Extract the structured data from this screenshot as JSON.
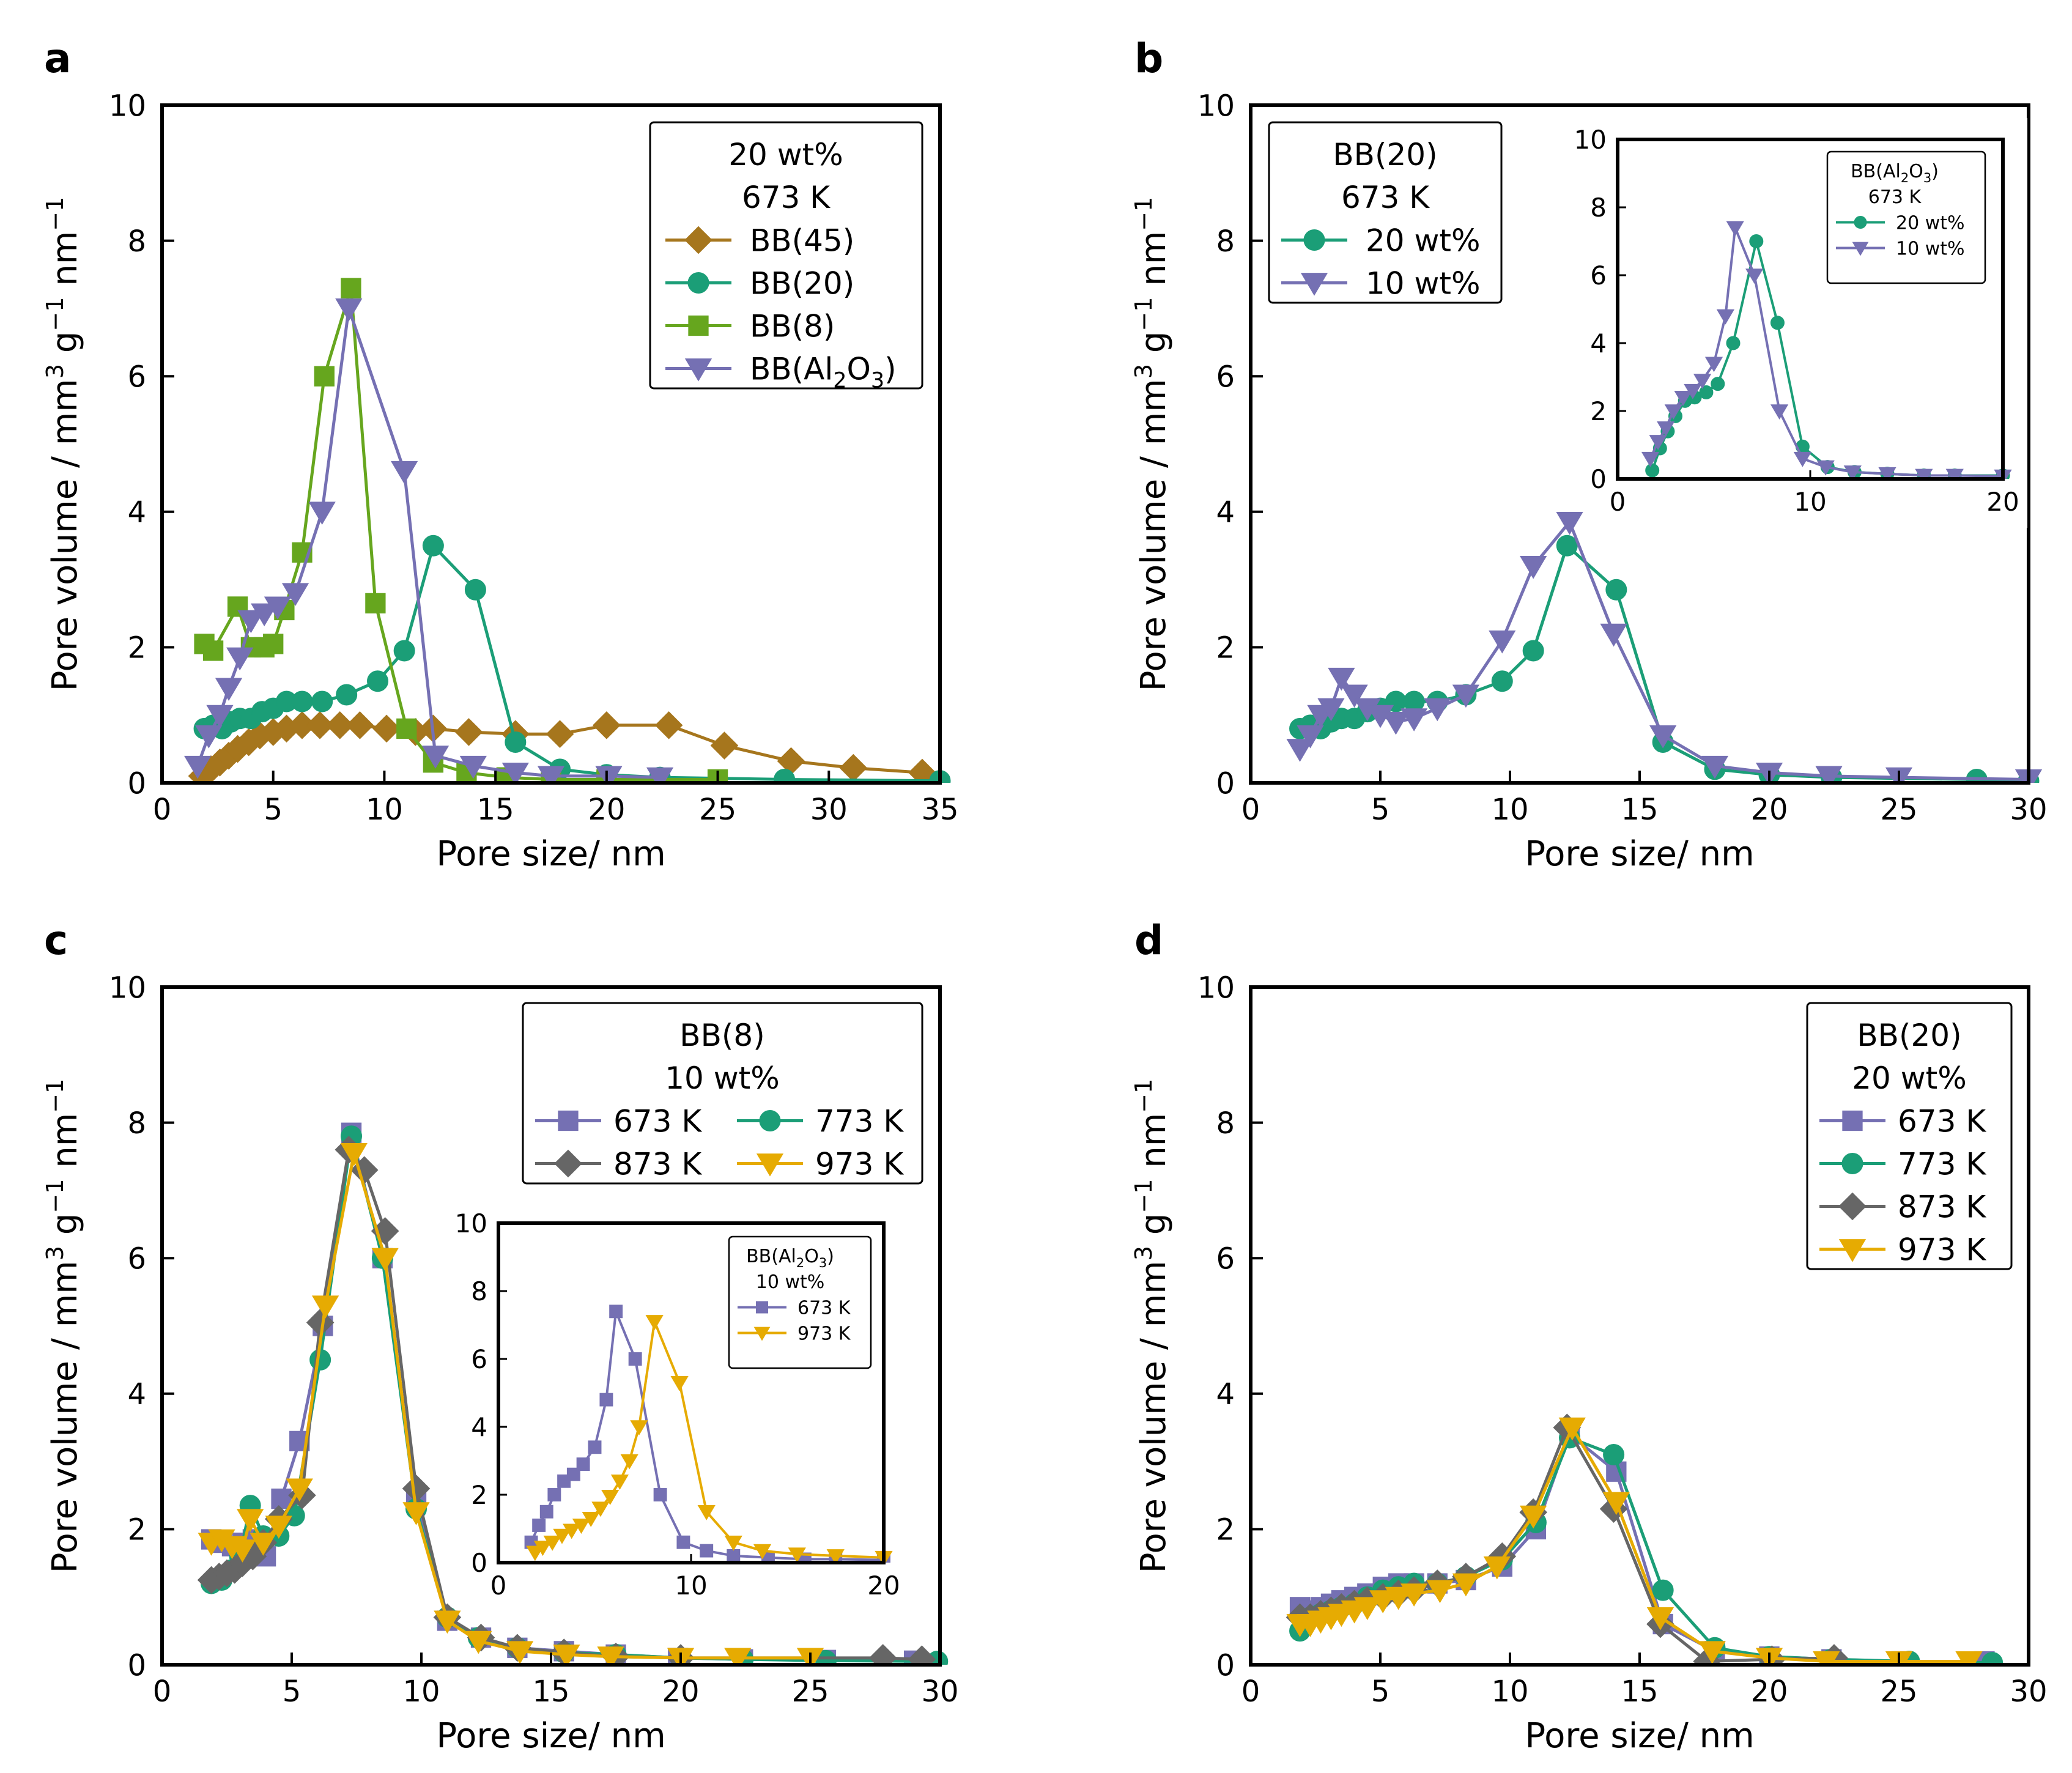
{
  "chart_data": [
    {
      "id": "a",
      "type": "line",
      "panel_label": "a",
      "xlabel": "Pore size/ nm",
      "ylabel": "Pore volume / mm³ g⁻¹ nm⁻¹",
      "xlim": [
        0,
        35
      ],
      "ylim": [
        0,
        10
      ],
      "xticks": [
        0,
        5,
        10,
        15,
        20,
        25,
        30,
        35
      ],
      "yticks": [
        0,
        2,
        4,
        6,
        8,
        10
      ],
      "legend": {
        "position": "top-right",
        "title": [
          "20 wt%",
          "673 K"
        ],
        "columns": 1
      },
      "series": [
        {
          "name": "BB(45)",
          "color": "#a6761d",
          "marker": "diamond",
          "x": [
            1.8,
            2.2,
            2.6,
            3.0,
            3.4,
            3.9,
            4.4,
            5.0,
            5.6,
            6.3,
            7.1,
            8.0,
            8.9,
            10.1,
            11.4,
            12.2,
            13.8,
            15.9,
            17.9,
            20.0,
            22.8,
            25.3,
            28.3,
            31.1,
            34.2
          ],
          "y": [
            0.1,
            0.2,
            0.3,
            0.4,
            0.5,
            0.6,
            0.7,
            0.75,
            0.8,
            0.85,
            0.85,
            0.85,
            0.85,
            0.8,
            0.75,
            0.8,
            0.75,
            0.72,
            0.72,
            0.85,
            0.85,
            0.55,
            0.32,
            0.22,
            0.15
          ]
        },
        {
          "name": "BB(20)",
          "color": "#1b9e77",
          "marker": "circle",
          "x": [
            1.9,
            2.3,
            2.7,
            3.1,
            3.5,
            4.0,
            4.5,
            5.0,
            5.6,
            6.3,
            7.2,
            8.3,
            9.7,
            10.9,
            12.2,
            14.1,
            15.9,
            17.9,
            20.0,
            22.4,
            28.0,
            35.0
          ],
          "y": [
            0.8,
            0.85,
            0.8,
            0.9,
            0.95,
            0.95,
            1.05,
            1.1,
            1.2,
            1.2,
            1.2,
            1.3,
            1.5,
            1.95,
            3.5,
            2.85,
            0.6,
            0.2,
            0.12,
            0.08,
            0.05,
            0.03
          ]
        },
        {
          "name": "BB(8)",
          "color": "#66a61e",
          "marker": "square",
          "x": [
            1.9,
            2.3,
            3.4,
            4.0,
            4.6,
            5.0,
            5.5,
            6.3,
            7.3,
            8.5,
            9.6,
            11.0,
            12.2,
            13.7,
            15.5,
            17.5,
            20.0,
            25.0
          ],
          "y": [
            2.05,
            1.95,
            2.6,
            2.0,
            2.0,
            2.05,
            2.55,
            3.4,
            6.0,
            7.3,
            2.65,
            0.8,
            0.3,
            0.15,
            0.08,
            0.05,
            0.05,
            0.05
          ]
        },
        {
          "name": "BB(Al₂O₃)",
          "color": "#7570b3",
          "marker": "triangle-down",
          "x": [
            1.6,
            2.1,
            2.6,
            3.0,
            3.5,
            4.0,
            4.6,
            5.2,
            6.0,
            7.2,
            8.4,
            10.9,
            12.3,
            14.0,
            15.9,
            17.5,
            20.1,
            22.4
          ],
          "y": [
            0.25,
            0.7,
            1.0,
            1.4,
            1.85,
            2.4,
            2.5,
            2.6,
            2.8,
            4.0,
            7.0,
            4.6,
            0.4,
            0.25,
            0.15,
            0.1,
            0.1,
            0.08
          ]
        }
      ]
    },
    {
      "id": "b",
      "type": "line",
      "panel_label": "b",
      "xlabel": "Pore size/ nm",
      "ylabel": "Pore volume / mm³ g⁻¹ nm⁻¹",
      "xlim": [
        0,
        30
      ],
      "ylim": [
        0,
        10
      ],
      "xticks": [
        0,
        5,
        10,
        15,
        20,
        25,
        30
      ],
      "yticks": [
        0,
        2,
        4,
        6,
        8,
        10
      ],
      "legend": {
        "position": "top-left",
        "title": [
          "BB(20)",
          "673 K"
        ],
        "columns": 1
      },
      "series": [
        {
          "name": "20 wt%",
          "color": "#1b9e77",
          "marker": "circle",
          "x": [
            1.9,
            2.3,
            2.7,
            3.1,
            3.5,
            4.0,
            4.5,
            5.0,
            5.6,
            6.3,
            7.2,
            8.3,
            9.7,
            10.9,
            12.2,
            14.1,
            15.9,
            17.9,
            20.0,
            22.4,
            28.0,
            30.0
          ],
          "y": [
            0.8,
            0.85,
            0.8,
            0.9,
            0.95,
            0.95,
            1.05,
            1.1,
            1.2,
            1.2,
            1.2,
            1.3,
            1.5,
            1.95,
            3.5,
            2.85,
            0.6,
            0.2,
            0.12,
            0.08,
            0.05,
            0.03
          ]
        },
        {
          "name": "10 wt%",
          "color": "#7570b3",
          "marker": "triangle-down",
          "x": [
            1.9,
            2.3,
            2.7,
            3.1,
            3.5,
            4.0,
            4.5,
            5.0,
            5.6,
            6.3,
            7.2,
            8.3,
            9.7,
            10.9,
            12.3,
            14.0,
            15.9,
            17.9,
            20.0,
            22.3,
            25.0,
            30.0
          ],
          "y": [
            0.5,
            0.7,
            1.0,
            1.1,
            1.55,
            1.3,
            1.1,
            1.0,
            0.9,
            0.95,
            1.1,
            1.3,
            2.1,
            3.2,
            3.85,
            2.2,
            0.7,
            0.25,
            0.15,
            0.1,
            0.08,
            0.05
          ]
        }
      ],
      "inset": {
        "xlim": [
          0,
          20
        ],
        "ylim": [
          0,
          10
        ],
        "xticks": [
          0,
          10,
          20
        ],
        "yticks": [
          0,
          2,
          4,
          6,
          8,
          10
        ],
        "legend": {
          "position": "top-right",
          "title": [
            "BB(Al₂O₃)",
            "673 K"
          ],
          "columns": 1
        },
        "series": [
          {
            "name": "20 wt%",
            "color": "#1b9e77",
            "marker": "circle",
            "x": [
              1.8,
              2.2,
              2.6,
              3.0,
              3.5,
              4.0,
              4.6,
              5.2,
              6.0,
              7.2,
              8.3,
              9.6,
              10.9,
              12.3,
              14.0,
              15.9,
              17.5,
              20.0
            ],
            "y": [
              0.25,
              0.9,
              1.4,
              1.85,
              2.3,
              2.4,
              2.55,
              2.8,
              4.0,
              7.0,
              4.6,
              0.95,
              0.35,
              0.2,
              0.15,
              0.1,
              0.1,
              0.1
            ]
          },
          {
            "name": "10 wt%",
            "color": "#7570b3",
            "marker": "triangle-down",
            "x": [
              1.7,
              2.1,
              2.5,
              2.9,
              3.4,
              3.9,
              4.4,
              5.0,
              5.6,
              6.1,
              7.1,
              8.4,
              9.6,
              10.8,
              12.2,
              14.0,
              15.9,
              17.5,
              20.0
            ],
            "y": [
              0.6,
              1.1,
              1.5,
              2.0,
              2.4,
              2.6,
              2.9,
              3.4,
              4.8,
              7.4,
              6.0,
              2.0,
              0.6,
              0.35,
              0.2,
              0.15,
              0.1,
              0.1,
              0.08
            ]
          }
        ]
      }
    },
    {
      "id": "c",
      "type": "line",
      "panel_label": "c",
      "xlabel": "Pore size/ nm",
      "ylabel": "Pore volume / mm³ g⁻¹ nm⁻¹",
      "xlim": [
        0,
        30
      ],
      "ylim": [
        0,
        10
      ],
      "xticks": [
        0,
        5,
        10,
        15,
        20,
        25,
        30
      ],
      "yticks": [
        0,
        2,
        4,
        6,
        8,
        10
      ],
      "legend": {
        "position": "top-right",
        "title": [
          "BB(8)",
          "10 wt%"
        ],
        "columns": 2
      },
      "series": [
        {
          "name": "673 K",
          "color": "#7570b3",
          "marker": "square",
          "x": [
            1.9,
            2.3,
            2.7,
            3.1,
            3.5,
            4.0,
            4.6,
            5.3,
            6.2,
            7.3,
            8.5,
            9.8,
            11.0,
            12.3,
            13.7,
            15.5,
            17.5,
            19.9,
            22.4,
            25.6,
            29.0
          ],
          "y": [
            1.85,
            1.8,
            1.75,
            1.8,
            1.85,
            1.6,
            2.45,
            3.3,
            5.0,
            7.85,
            6.0,
            2.4,
            0.65,
            0.4,
            0.25,
            0.2,
            0.15,
            0.1,
            0.08,
            0.07,
            0.06
          ]
        },
        {
          "name": "773 K",
          "color": "#1b9e77",
          "marker": "circle",
          "x": [
            1.9,
            2.3,
            2.7,
            3.0,
            3.4,
            3.9,
            4.5,
            5.1,
            6.1,
            7.3,
            8.5,
            9.8,
            11.0,
            12.2,
            13.7,
            15.5,
            17.5,
            20.0,
            22.4,
            25.6,
            29.9
          ],
          "y": [
            1.2,
            1.25,
            1.4,
            1.6,
            2.35,
            1.9,
            1.9,
            2.2,
            4.5,
            7.8,
            6.0,
            2.3,
            0.7,
            0.4,
            0.25,
            0.18,
            0.15,
            0.1,
            0.08,
            0.06,
            0.05
          ]
        },
        {
          "name": "873 K",
          "color": "#666666",
          "marker": "diamond",
          "x": [
            1.9,
            2.2,
            2.5,
            2.8,
            3.1,
            3.5,
            3.9,
            4.5,
            5.4,
            6.1,
            7.2,
            7.8,
            8.6,
            9.8,
            11.0,
            12.3,
            13.7,
            15.5,
            17.5,
            20.0,
            27.8,
            29.3
          ],
          "y": [
            1.25,
            1.3,
            1.35,
            1.4,
            1.5,
            1.6,
            1.8,
            2.15,
            2.5,
            5.05,
            7.6,
            7.3,
            6.4,
            2.6,
            0.7,
            0.4,
            0.25,
            0.18,
            0.12,
            0.1,
            0.1,
            0.08
          ]
        },
        {
          "name": "973 K",
          "color": "#e6ab02",
          "marker": "triangle-down",
          "x": [
            1.9,
            2.3,
            2.7,
            3.1,
            3.4,
            3.9,
            4.5,
            5.3,
            6.3,
            7.4,
            8.6,
            9.8,
            11.0,
            12.2,
            13.8,
            15.6,
            17.3,
            20.0,
            22.2,
            25.0
          ],
          "y": [
            1.8,
            1.85,
            1.75,
            1.7,
            2.15,
            1.8,
            2.05,
            2.6,
            5.3,
            7.55,
            6.0,
            2.25,
            0.65,
            0.35,
            0.2,
            0.15,
            0.12,
            0.1,
            0.1,
            0.1
          ]
        }
      ],
      "inset": {
        "xlim": [
          0,
          20
        ],
        "ylim": [
          0,
          10
        ],
        "xticks": [
          0,
          10,
          20
        ],
        "yticks": [
          0,
          2,
          4,
          6,
          8,
          10
        ],
        "legend": {
          "position": "top-right",
          "title": [
            "BB(Al₂O₃)",
            "10 wt%"
          ],
          "columns": 1
        },
        "series": [
          {
            "name": "673 K",
            "color": "#7570b3",
            "marker": "square",
            "x": [
              1.7,
              2.1,
              2.5,
              2.9,
              3.4,
              3.9,
              4.4,
              5.0,
              5.6,
              6.1,
              7.1,
              8.4,
              9.6,
              10.8,
              12.2,
              14.0,
              15.9,
              17.5,
              20.0
            ],
            "y": [
              0.6,
              1.1,
              1.5,
              2.0,
              2.4,
              2.6,
              2.9,
              3.4,
              4.8,
              7.4,
              6.0,
              2.0,
              0.6,
              0.35,
              0.2,
              0.15,
              0.1,
              0.1,
              0.08
            ]
          },
          {
            "name": "973 K",
            "color": "#e6ab02",
            "marker": "triangle-down",
            "x": [
              1.9,
              2.3,
              2.8,
              3.3,
              3.8,
              4.3,
              4.8,
              5.3,
              5.8,
              6.3,
              6.8,
              7.3,
              8.1,
              9.4,
              10.8,
              12.2,
              13.7,
              15.5,
              17.5,
              20.0
            ],
            "y": [
              0.3,
              0.45,
              0.6,
              0.8,
              0.95,
              1.1,
              1.3,
              1.6,
              1.95,
              2.4,
              3.0,
              4.0,
              7.1,
              5.3,
              1.5,
              0.6,
              0.35,
              0.25,
              0.2,
              0.15
            ]
          }
        ]
      }
    },
    {
      "id": "d",
      "type": "line",
      "panel_label": "d",
      "xlabel": "Pore size/ nm",
      "ylabel": "Pore volume / mm³ g⁻¹ nm⁻¹",
      "xlim": [
        0,
        30
      ],
      "ylim": [
        0,
        10
      ],
      "xticks": [
        0,
        5,
        10,
        15,
        20,
        25,
        30
      ],
      "yticks": [
        0,
        2,
        4,
        6,
        8,
        10
      ],
      "legend": {
        "position": "top-right",
        "title": [
          "BB(20)",
          "20 wt%"
        ],
        "columns": 1
      },
      "series": [
        {
          "name": "673 K",
          "color": "#7570b3",
          "marker": "square",
          "x": [
            1.9,
            2.3,
            2.7,
            3.1,
            3.5,
            4.0,
            4.5,
            5.1,
            5.7,
            6.3,
            7.2,
            8.3,
            9.7,
            11.0,
            12.3,
            14.1,
            15.9,
            17.9,
            20.0,
            22.4,
            25.1,
            28.3
          ],
          "y": [
            0.85,
            0.8,
            0.85,
            0.9,
            0.95,
            1.0,
            1.05,
            1.15,
            1.2,
            1.2,
            1.2,
            1.25,
            1.45,
            2.0,
            3.4,
            2.85,
            0.6,
            0.2,
            0.12,
            0.08,
            0.05,
            0.05
          ]
        },
        {
          "name": "773 K",
          "color": "#1b9e77",
          "marker": "circle",
          "x": [
            1.9,
            2.3,
            2.7,
            3.1,
            3.5,
            4.0,
            4.5,
            5.1,
            5.7,
            6.3,
            7.2,
            8.3,
            9.7,
            11.0,
            12.3,
            14.0,
            15.9,
            17.9,
            20.0,
            22.4,
            25.4,
            28.6
          ],
          "y": [
            0.5,
            0.7,
            0.75,
            0.8,
            0.85,
            0.9,
            1.0,
            1.1,
            1.15,
            1.2,
            1.2,
            1.3,
            1.55,
            2.1,
            3.35,
            3.1,
            1.1,
            0.25,
            0.12,
            0.08,
            0.05,
            0.03
          ]
        },
        {
          "name": "873 K",
          "color": "#666666",
          "marker": "diamond",
          "x": [
            1.9,
            2.3,
            2.7,
            3.1,
            3.5,
            4.0,
            4.5,
            5.1,
            5.7,
            6.3,
            7.2,
            8.3,
            9.7,
            10.9,
            12.2,
            14.0,
            15.8,
            17.6,
            20.1,
            22.5
          ],
          "y": [
            0.7,
            0.7,
            0.75,
            0.8,
            0.85,
            0.9,
            0.95,
            1.0,
            1.05,
            1.1,
            1.2,
            1.3,
            1.6,
            2.25,
            3.5,
            2.3,
            0.6,
            0.05,
            0.08,
            0.1
          ]
        },
        {
          "name": "973 K",
          "color": "#e6ab02",
          "marker": "triangle-down",
          "x": [
            1.9,
            2.3,
            2.7,
            3.1,
            3.5,
            4.0,
            4.5,
            5.1,
            5.7,
            6.3,
            7.3,
            8.3,
            9.5,
            10.9,
            12.4,
            14.1,
            15.8,
            17.8,
            20.0,
            22.2,
            25.0,
            27.7
          ],
          "y": [
            0.6,
            0.6,
            0.65,
            0.7,
            0.75,
            0.8,
            0.85,
            0.95,
            1.0,
            1.05,
            1.1,
            1.2,
            1.45,
            2.2,
            3.5,
            2.4,
            0.7,
            0.2,
            0.1,
            0.05,
            0.05,
            0.05
          ]
        }
      ]
    }
  ]
}
